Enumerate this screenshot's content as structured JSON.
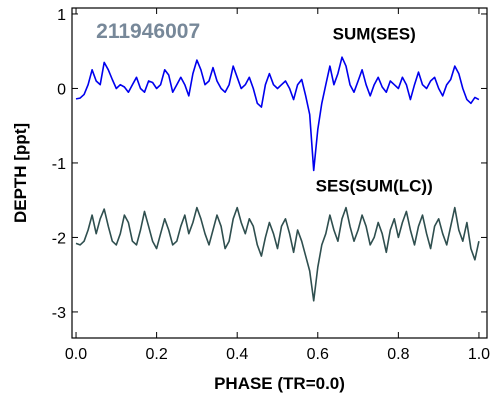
{
  "chart_data": {
    "type": "line",
    "xlabel": "PHASE (TR=0.0)",
    "ylabel": "DEPTH [ppt]",
    "xlim": [
      -0.01,
      1.02
    ],
    "ylim": [
      -3.35,
      1.08
    ],
    "x_ticks": [
      0.0,
      0.2,
      0.4,
      0.6,
      0.8,
      1.0
    ],
    "x_tick_labels": [
      "0.0",
      "0.2",
      "0.4",
      "0.6",
      "0.8",
      "1.0"
    ],
    "y_ticks": [
      1,
      0,
      -1,
      -2,
      -3
    ],
    "y_tick_labels": [
      "1",
      "0",
      "-1",
      "-2",
      "-3"
    ],
    "grid": false,
    "annotations": [
      {
        "text": "211946007",
        "color": "#778899",
        "anchor": "start",
        "x": 0.05,
        "y": 0.68,
        "size": "large"
      },
      {
        "text": "SUM(SES)",
        "color": "#000000",
        "anchor": "middle",
        "x": 0.74,
        "y": 0.66,
        "size": "medium"
      },
      {
        "text": "SES(SUM(LC))",
        "color": "#000000",
        "anchor": "middle",
        "x": 0.74,
        "y": -1.38,
        "size": "medium"
      }
    ],
    "series": [
      {
        "color": "#0000ee",
        "x": [
          0.0,
          0.01,
          0.02,
          0.03,
          0.04,
          0.05,
          0.06,
          0.07,
          0.08,
          0.09,
          0.1,
          0.11,
          0.12,
          0.13,
          0.14,
          0.15,
          0.16,
          0.17,
          0.18,
          0.19,
          0.2,
          0.21,
          0.22,
          0.23,
          0.24,
          0.25,
          0.26,
          0.27,
          0.28,
          0.29,
          0.3,
          0.31,
          0.32,
          0.33,
          0.34,
          0.35,
          0.36,
          0.37,
          0.38,
          0.39,
          0.4,
          0.41,
          0.42,
          0.43,
          0.44,
          0.45,
          0.46,
          0.47,
          0.48,
          0.49,
          0.5,
          0.51,
          0.52,
          0.53,
          0.54,
          0.55,
          0.56,
          0.57,
          0.58,
          0.59,
          0.6,
          0.61,
          0.62,
          0.63,
          0.64,
          0.65,
          0.66,
          0.67,
          0.68,
          0.69,
          0.7,
          0.71,
          0.72,
          0.73,
          0.74,
          0.75,
          0.76,
          0.77,
          0.78,
          0.79,
          0.8,
          0.81,
          0.82,
          0.83,
          0.84,
          0.85,
          0.86,
          0.87,
          0.88,
          0.89,
          0.9,
          0.91,
          0.92,
          0.93,
          0.94,
          0.95,
          0.96,
          0.97,
          0.98,
          0.99,
          1.0
        ],
        "y": [
          -0.14,
          -0.13,
          -0.08,
          0.05,
          0.25,
          0.1,
          0.05,
          0.35,
          0.25,
          0.12,
          0.0,
          0.05,
          0.02,
          -0.05,
          0.05,
          0.15,
          0.0,
          -0.05,
          0.1,
          0.08,
          0.0,
          0.05,
          0.25,
          0.18,
          -0.05,
          0.05,
          0.15,
          0.05,
          -0.1,
          0.2,
          0.38,
          0.25,
          0.05,
          0.1,
          0.28,
          0.1,
          0.0,
          -0.05,
          0.05,
          0.3,
          0.15,
          0.0,
          0.05,
          0.15,
          0.0,
          -0.2,
          -0.25,
          0.05,
          0.2,
          0.05,
          0.0,
          0.05,
          0.1,
          0.0,
          -0.15,
          0.05,
          0.12,
          -0.1,
          -0.35,
          -1.1,
          -0.55,
          -0.2,
          0.05,
          0.3,
          0.05,
          0.2,
          0.42,
          0.3,
          0.05,
          -0.05,
          0.1,
          0.25,
          0.05,
          -0.1,
          0.05,
          0.15,
          0.02,
          -0.05,
          0.1,
          0.05,
          0.0,
          0.15,
          0.05,
          -0.15,
          0.05,
          0.22,
          0.05,
          0.0,
          0.1,
          0.15,
          0.0,
          -0.1,
          0.05,
          0.12,
          0.3,
          0.2,
          0.0,
          -0.15,
          -0.2,
          -0.12,
          -0.15
        ]
      },
      {
        "color": "#2f4f4f",
        "x": [
          0.0,
          0.01,
          0.02,
          0.03,
          0.04,
          0.05,
          0.06,
          0.07,
          0.08,
          0.09,
          0.1,
          0.11,
          0.12,
          0.13,
          0.14,
          0.15,
          0.16,
          0.17,
          0.18,
          0.19,
          0.2,
          0.21,
          0.22,
          0.23,
          0.24,
          0.25,
          0.26,
          0.27,
          0.28,
          0.29,
          0.3,
          0.31,
          0.32,
          0.33,
          0.34,
          0.35,
          0.36,
          0.37,
          0.38,
          0.39,
          0.4,
          0.41,
          0.42,
          0.43,
          0.44,
          0.45,
          0.46,
          0.47,
          0.48,
          0.49,
          0.5,
          0.51,
          0.52,
          0.53,
          0.54,
          0.55,
          0.56,
          0.57,
          0.58,
          0.59,
          0.6,
          0.61,
          0.62,
          0.63,
          0.64,
          0.65,
          0.66,
          0.67,
          0.68,
          0.69,
          0.7,
          0.71,
          0.72,
          0.73,
          0.74,
          0.75,
          0.76,
          0.77,
          0.78,
          0.79,
          0.8,
          0.81,
          0.82,
          0.83,
          0.84,
          0.85,
          0.86,
          0.87,
          0.88,
          0.89,
          0.9,
          0.91,
          0.92,
          0.93,
          0.94,
          0.95,
          0.96,
          0.97,
          0.98,
          0.99,
          1.0
        ],
        "y": [
          -2.08,
          -2.1,
          -2.05,
          -1.9,
          -1.7,
          -1.95,
          -1.75,
          -1.62,
          -1.85,
          -2.05,
          -2.1,
          -1.95,
          -1.7,
          -1.8,
          -2.05,
          -2.1,
          -1.9,
          -1.65,
          -1.85,
          -2.05,
          -2.15,
          -1.95,
          -1.75,
          -1.9,
          -2.1,
          -2.05,
          -1.85,
          -1.7,
          -1.95,
          -1.8,
          -1.6,
          -1.75,
          -1.95,
          -2.1,
          -1.9,
          -1.7,
          -1.85,
          -2.15,
          -2.05,
          -1.75,
          -1.6,
          -1.8,
          -1.95,
          -1.75,
          -1.85,
          -2.1,
          -2.25,
          -2.0,
          -1.8,
          -1.95,
          -2.15,
          -1.85,
          -1.75,
          -1.95,
          -2.2,
          -1.9,
          -2.05,
          -2.25,
          -2.45,
          -2.85,
          -2.4,
          -2.1,
          -1.95,
          -1.7,
          -1.9,
          -2.05,
          -1.75,
          -1.6,
          -1.85,
          -2.05,
          -1.9,
          -1.7,
          -1.85,
          -2.1,
          -2.0,
          -1.8,
          -1.95,
          -2.2,
          -1.9,
          -1.75,
          -2.0,
          -1.8,
          -1.65,
          -1.9,
          -2.1,
          -1.85,
          -1.7,
          -1.95,
          -2.15,
          -1.85,
          -1.75,
          -1.95,
          -2.1,
          -1.85,
          -1.6,
          -1.9,
          -2.05,
          -1.8,
          -2.15,
          -2.3,
          -2.05
        ]
      }
    ]
  }
}
